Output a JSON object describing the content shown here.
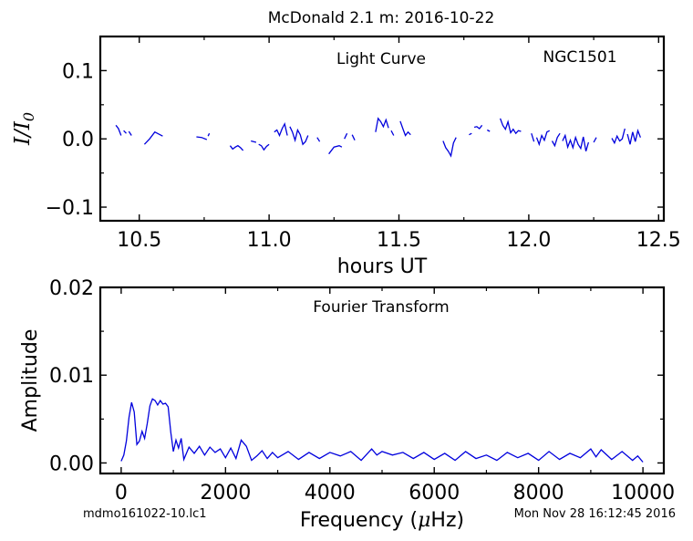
{
  "figure": {
    "title": "McDonald 2.1 m:  2016-10-22",
    "footer_left": "mdmo161022-10.lc1",
    "footer_right": "Mon Nov 28 16:12:45 2016"
  },
  "chart_data": [
    {
      "type": "line",
      "title": "Light Curve",
      "annotation": "NGC1501",
      "xlabel": "hours UT",
      "ylabel": "I/I0",
      "xlim": [
        10.35,
        12.52
      ],
      "ylim": [
        -0.12,
        0.15
      ],
      "xticks": [
        10.5,
        11.0,
        11.5,
        12.0,
        12.5
      ],
      "xtick_labels": [
        "10.5",
        "11.0",
        "11.5",
        "12.0",
        "12.5"
      ],
      "yticks": [
        -0.1,
        0.0,
        0.1
      ],
      "ytick_labels": [
        "−0.1",
        "0.0",
        "0.1"
      ],
      "grid": false,
      "color": "#0000dd",
      "segments": [
        {
          "x": [
            10.41,
            10.42,
            10.43
          ],
          "y": [
            0.02,
            0.015,
            0.005
          ]
        },
        {
          "x": [
            10.44,
            10.45
          ],
          "y": [
            0.012,
            0.008
          ]
        },
        {
          "x": [
            10.46,
            10.47
          ],
          "y": [
            0.011,
            0.005
          ]
        },
        {
          "x": [
            10.52,
            10.54,
            10.56,
            10.59
          ],
          "y": [
            -0.008,
            0.0,
            0.01,
            0.004
          ]
        },
        {
          "x": [
            10.72,
            10.74,
            10.76
          ],
          "y": [
            0.003,
            0.002,
            -0.001
          ]
        },
        {
          "x": [
            10.765,
            10.77
          ],
          "y": [
            0.004,
            0.008
          ]
        },
        {
          "x": [
            10.85,
            10.86,
            10.87,
            10.88,
            10.89,
            10.9
          ],
          "y": [
            -0.01,
            -0.015,
            -0.012,
            -0.01,
            -0.013,
            -0.017
          ]
        },
        {
          "x": [
            10.93,
            10.95
          ],
          "y": [
            -0.003,
            -0.005
          ]
        },
        {
          "x": [
            10.96,
            10.97,
            10.98,
            10.99,
            11.0
          ],
          "y": [
            -0.008,
            -0.01,
            -0.016,
            -0.011,
            -0.008
          ]
        },
        {
          "x": [
            11.02,
            11.03,
            11.04,
            11.05,
            11.06,
            11.07
          ],
          "y": [
            0.01,
            0.013,
            0.005,
            0.015,
            0.022,
            0.005
          ]
        },
        {
          "x": [
            11.08,
            11.09,
            11.1,
            11.11,
            11.12,
            11.13,
            11.14,
            11.15
          ],
          "y": [
            0.018,
            0.01,
            -0.002,
            0.013,
            0.006,
            -0.008,
            -0.004,
            0.005
          ]
        },
        {
          "x": [
            11.185,
            11.195
          ],
          "y": [
            0.002,
            -0.004
          ]
        },
        {
          "x": [
            11.23,
            11.25,
            11.27,
            11.28
          ],
          "y": [
            -0.022,
            -0.012,
            -0.01,
            -0.012
          ]
        },
        {
          "x": [
            11.29,
            11.3
          ],
          "y": [
            0.0,
            0.008
          ]
        },
        {
          "x": [
            11.32,
            11.33
          ],
          "y": [
            0.006,
            -0.002
          ]
        },
        {
          "x": [
            11.41,
            11.42,
            11.43,
            11.44,
            11.45,
            11.46
          ],
          "y": [
            0.01,
            0.03,
            0.025,
            0.018,
            0.028,
            0.016
          ]
        },
        {
          "x": [
            11.47,
            11.48
          ],
          "y": [
            0.012,
            0.005
          ]
        },
        {
          "x": [
            11.505,
            11.515,
            11.525,
            11.535,
            11.545
          ],
          "y": [
            0.026,
            0.015,
            0.005,
            0.01,
            0.006
          ]
        },
        {
          "x": [
            11.67,
            11.68,
            11.69,
            11.7,
            11.71,
            11.72
          ],
          "y": [
            -0.003,
            -0.013,
            -0.018,
            -0.025,
            -0.006,
            0.002
          ]
        },
        {
          "x": [
            11.77,
            11.78
          ],
          "y": [
            0.006,
            0.008
          ]
        },
        {
          "x": [
            11.79,
            11.8,
            11.81,
            11.82
          ],
          "y": [
            0.017,
            0.018,
            0.015,
            0.02
          ]
        },
        {
          "x": [
            11.84,
            11.85
          ],
          "y": [
            0.013,
            0.011
          ]
        },
        {
          "x": [
            11.89,
            11.9,
            11.91,
            11.92,
            11.93,
            11.94,
            11.95,
            11.96,
            11.97
          ],
          "y": [
            0.03,
            0.02,
            0.014,
            0.025,
            0.009,
            0.014,
            0.008,
            0.012,
            0.011
          ]
        },
        {
          "x": [
            12.01,
            12.02
          ],
          "y": [
            0.008,
            -0.004
          ]
        },
        {
          "x": [
            12.03,
            12.04,
            12.05,
            12.06,
            12.07,
            12.08
          ],
          "y": [
            0.002,
            -0.008,
            0.005,
            -0.002,
            0.01,
            0.012
          ]
        },
        {
          "x": [
            12.09,
            12.1,
            12.11,
            12.12
          ],
          "y": [
            -0.003,
            -0.01,
            0.002,
            0.008
          ]
        },
        {
          "x": [
            12.13,
            12.14,
            12.15,
            12.16,
            12.17,
            12.18,
            12.19,
            12.2,
            12.21,
            12.22,
            12.23
          ],
          "y": [
            -0.003,
            0.005,
            -0.012,
            -0.002,
            -0.013,
            0.002,
            -0.008,
            -0.014,
            0.003,
            -0.018,
            -0.005
          ]
        },
        {
          "x": [
            12.25,
            12.26
          ],
          "y": [
            -0.005,
            0.002
          ]
        },
        {
          "x": [
            12.32,
            12.33,
            12.34,
            12.35,
            12.36,
            12.37
          ],
          "y": [
            0.001,
            -0.006,
            0.004,
            -0.003,
            0.0,
            0.015
          ]
        },
        {
          "x": [
            12.38,
            12.39,
            12.4,
            12.41,
            12.42,
            12.43
          ],
          "y": [
            0.007,
            -0.008,
            0.01,
            -0.004,
            0.012,
            0.002
          ]
        }
      ]
    },
    {
      "type": "line",
      "title": "Fourier Transform",
      "xlabel": "Frequency (μHz)",
      "ylabel": "Amplitude",
      "xlim": [
        -400,
        10400
      ],
      "ylim": [
        -0.0012,
        0.02
      ],
      "xticks": [
        0,
        2000,
        4000,
        6000,
        8000,
        10000
      ],
      "xtick_labels": [
        "0",
        "2000",
        "4000",
        "6000",
        "8000",
        "10000"
      ],
      "yticks": [
        0.0,
        0.01,
        0.02
      ],
      "ytick_labels": [
        "0.00",
        "0.01",
        "0.02"
      ],
      "grid": false,
      "color": "#0000dd",
      "x": [
        0,
        50,
        100,
        150,
        200,
        250,
        300,
        350,
        400,
        450,
        500,
        550,
        600,
        650,
        700,
        750,
        800,
        850,
        900,
        950,
        1000,
        1050,
        1100,
        1150,
        1200,
        1300,
        1400,
        1500,
        1600,
        1700,
        1800,
        1900,
        2000,
        2100,
        2200,
        2300,
        2400,
        2500,
        2600,
        2700,
        2800,
        2900,
        3000,
        3200,
        3400,
        3600,
        3800,
        4000,
        4200,
        4400,
        4600,
        4800,
        4900,
        5000,
        5200,
        5400,
        5600,
        5800,
        6000,
        6200,
        6400,
        6600,
        6800,
        7000,
        7200,
        7400,
        7600,
        7800,
        8000,
        8200,
        8400,
        8600,
        8800,
        9000,
        9100,
        9200,
        9400,
        9600,
        9800,
        9900,
        10000
      ],
      "y": [
        0.0002,
        0.0009,
        0.0025,
        0.0052,
        0.0069,
        0.0058,
        0.0021,
        0.0025,
        0.0036,
        0.0028,
        0.0045,
        0.0065,
        0.0073,
        0.0071,
        0.0066,
        0.0071,
        0.0067,
        0.0068,
        0.0064,
        0.0035,
        0.0013,
        0.0026,
        0.0017,
        0.0028,
        0.0004,
        0.0018,
        0.0011,
        0.0019,
        0.0009,
        0.0018,
        0.0012,
        0.0016,
        0.0006,
        0.0017,
        0.0005,
        0.0026,
        0.0019,
        0.0003,
        0.0008,
        0.0014,
        0.0005,
        0.0012,
        0.0006,
        0.0013,
        0.0004,
        0.0012,
        0.0005,
        0.0012,
        0.0008,
        0.0013,
        0.0003,
        0.0016,
        0.0009,
        0.0013,
        0.0009,
        0.0012,
        0.0005,
        0.0012,
        0.0004,
        0.0011,
        0.0003,
        0.0013,
        0.0005,
        0.0009,
        0.0003,
        0.0012,
        0.0006,
        0.0011,
        0.0003,
        0.0013,
        0.0004,
        0.0011,
        0.0006,
        0.0016,
        0.0007,
        0.0015,
        0.0004,
        0.0013,
        0.0003,
        0.0008,
        0.0001
      ]
    }
  ]
}
